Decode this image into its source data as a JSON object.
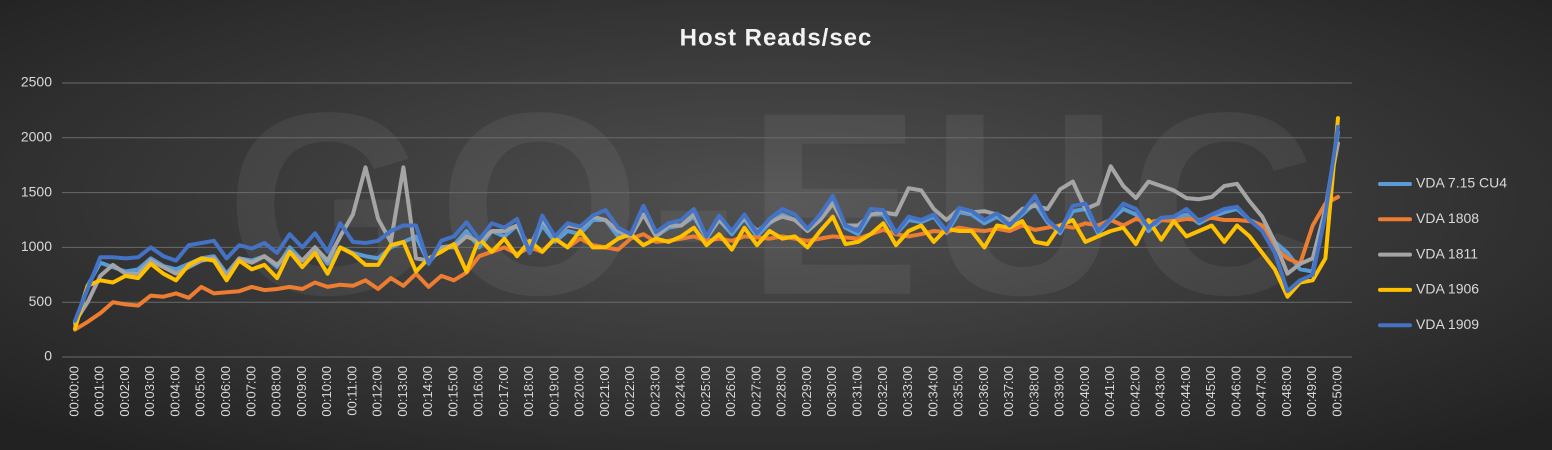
{
  "chart_data": {
    "type": "line",
    "title": "Host Reads/sec",
    "watermark": "GO-EUC",
    "ylim": [
      0,
      2500
    ],
    "yticks": [
      0,
      500,
      1000,
      1500,
      2000,
      2500
    ],
    "grid": true,
    "legend": "right",
    "categories": [
      "00:00:00",
      null,
      "00:01:00",
      null,
      "00:02:00",
      null,
      "00:03:00",
      null,
      "00:04:00",
      null,
      "00:05:00",
      null,
      "00:06:00",
      null,
      "00:07:00",
      null,
      "00:08:00",
      null,
      "00:09:00",
      null,
      "00:10:00",
      null,
      "00:11:00",
      null,
      "00:12:00",
      null,
      "00:13:00",
      null,
      "00:14:00",
      null,
      "00:15:00",
      null,
      "00:16:00",
      null,
      "00:17:00",
      null,
      "00:18:00",
      null,
      "00:19:00",
      null,
      "00:20:00",
      null,
      "00:21:00",
      null,
      "00:22:00",
      null,
      "00:23:00",
      null,
      "00:24:00",
      null,
      "00:25:00",
      null,
      "00:26:00",
      null,
      "00:27:00",
      null,
      "00:28:00",
      null,
      "00:29:00",
      null,
      "00:30:00",
      null,
      "00:31:00",
      null,
      "00:32:00",
      null,
      "00:33:00",
      null,
      "00:34:00",
      null,
      "00:35:00",
      null,
      "00:36:00",
      null,
      "00:37:00",
      null,
      "00:38:00",
      null,
      "00:39:00",
      null,
      "00:40:00",
      null,
      "00:41:00",
      null,
      "00:42:00",
      null,
      "00:43:00",
      null,
      "00:44:00",
      null,
      "00:45:00",
      null,
      "00:46:00",
      null,
      "00:47:00",
      null,
      "00:48:00",
      null,
      "00:49:00",
      null,
      "00:50:00"
    ],
    "series": [
      {
        "name": "VDA 7.15 CU4",
        "color": "#5b9bd5",
        "values": [
          300,
          650,
          860,
          820,
          780,
          800,
          900,
          830,
          800,
          850,
          900,
          920,
          760,
          900,
          880,
          920,
          820,
          1000,
          880,
          1000,
          850,
          1000,
          950,
          920,
          900,
          1000,
          1050,
          1100,
          860,
          1000,
          1020,
          1150,
          1000,
          1150,
          1100,
          1200,
          950,
          1200,
          1050,
          1150,
          1120,
          1250,
          1250,
          1100,
          1100,
          1300,
          1100,
          1180,
          1200,
          1280,
          1080,
          1250,
          1120,
          1260,
          1100,
          1220,
          1300,
          1250,
          1150,
          1250,
          1420,
          1180,
          1120,
          1300,
          1300,
          1120,
          1250,
          1230,
          1280,
          1130,
          1320,
          1300,
          1220,
          1280,
          1200,
          1300,
          1400,
          1230,
          1130,
          1330,
          1350,
          1130,
          1250,
          1350,
          1300,
          1150,
          1250,
          1260,
          1300,
          1220,
          1280,
          1320,
          1350,
          1250,
          1200,
          1050,
          950,
          800,
          780,
          1350,
          2050
        ]
      },
      {
        "name": "VDA 1808",
        "color": "#ed7d31",
        "values": [
          250,
          320,
          400,
          500,
          480,
          470,
          560,
          550,
          580,
          540,
          640,
          580,
          590,
          600,
          640,
          610,
          620,
          640,
          620,
          680,
          640,
          660,
          650,
          700,
          620,
          720,
          650,
          760,
          640,
          740,
          700,
          770,
          920,
          960,
          1000,
          940,
          1000,
          960,
          1080,
          1000,
          1080,
          1020,
          1000,
          980,
          1080,
          1120,
          1050,
          1060,
          1080,
          1100,
          1060,
          1080,
          1060,
          1100,
          1090,
          1080,
          1100,
          1080,
          1060,
          1080,
          1100,
          1090,
          1080,
          1120,
          1160,
          1120,
          1100,
          1120,
          1150,
          1140,
          1180,
          1160,
          1150,
          1170,
          1150,
          1200,
          1160,
          1180,
          1200,
          1180,
          1220,
          1200,
          1250,
          1200,
          1260,
          1230,
          1250,
          1240,
          1260,
          1250,
          1270,
          1250,
          1250,
          1240,
          1200,
          1000,
          900,
          850,
          1200,
          1400,
          1460
        ]
      },
      {
        "name": "VDA 1811",
        "color": "#a5a5a5",
        "values": [
          320,
          500,
          740,
          840,
          760,
          760,
          880,
          820,
          760,
          820,
          880,
          900,
          740,
          900,
          860,
          920,
          840,
          960,
          880,
          1000,
          880,
          1100,
          1300,
          1730,
          1260,
          1050,
          1730,
          900,
          880,
          1000,
          1000,
          1100,
          1050,
          1150,
          1150,
          1200,
          1000,
          1250,
          1100,
          1200,
          1180,
          1280,
          1250,
          1150,
          1100,
          1300,
          1100,
          1200,
          1200,
          1300,
          1100,
          1250,
          1150,
          1270,
          1150,
          1230,
          1280,
          1250,
          1150,
          1250,
          1400,
          1200,
          1200,
          1300,
          1320,
          1300,
          1540,
          1520,
          1350,
          1250,
          1350,
          1320,
          1330,
          1300,
          1250,
          1350,
          1380,
          1350,
          1530,
          1600,
          1350,
          1400,
          1740,
          1560,
          1450,
          1600,
          1560,
          1520,
          1450,
          1440,
          1460,
          1560,
          1580,
          1420,
          1280,
          1050,
          760,
          850,
          900,
          1350,
          1950
        ]
      },
      {
        "name": "VDA 1906",
        "color": "#ffc000",
        "values": [
          260,
          650,
          700,
          680,
          740,
          720,
          850,
          760,
          700,
          840,
          900,
          880,
          700,
          880,
          800,
          840,
          720,
          960,
          820,
          950,
          760,
          1000,
          940,
          840,
          840,
          1020,
          1050,
          780,
          900,
          960,
          1030,
          780,
          1080,
          960,
          1080,
          920,
          1060,
          960,
          1080,
          1000,
          1150,
          1000,
          1000,
          1080,
          1120,
          1020,
          1080,
          1050,
          1100,
          1180,
          1020,
          1120,
          980,
          1180,
          1020,
          1150,
          1080,
          1100,
          1000,
          1150,
          1280,
          1030,
          1050,
          1120,
          1220,
          1020,
          1150,
          1200,
          1050,
          1170,
          1150,
          1150,
          1000,
          1200,
          1180,
          1240,
          1050,
          1030,
          1200,
          1250,
          1050,
          1100,
          1150,
          1180,
          1030,
          1250,
          1070,
          1240,
          1100,
          1150,
          1200,
          1050,
          1200,
          1100,
          950,
          800,
          550,
          680,
          700,
          900,
          2180
        ]
      },
      {
        "name": "VDA 1909",
        "color": "#4472c4",
        "values": [
          330,
          620,
          910,
          910,
          900,
          910,
          1000,
          920,
          880,
          1020,
          1040,
          1060,
          900,
          1020,
          990,
          1040,
          950,
          1120,
          1000,
          1130,
          960,
          1220,
          1050,
          1040,
          1060,
          1150,
          1200,
          1200,
          850,
          1060,
          1100,
          1230,
          1070,
          1220,
          1180,
          1260,
          950,
          1290,
          1100,
          1220,
          1190,
          1290,
          1340,
          1180,
          1120,
          1380,
          1140,
          1220,
          1250,
          1350,
          1100,
          1290,
          1150,
          1300,
          1130,
          1260,
          1350,
          1300,
          1170,
          1300,
          1470,
          1200,
          1150,
          1350,
          1340,
          1130,
          1280,
          1250,
          1300,
          1150,
          1360,
          1330,
          1250,
          1310,
          1200,
          1320,
          1470,
          1250,
          1150,
          1380,
          1400,
          1150,
          1260,
          1400,
          1350,
          1180,
          1270,
          1280,
          1350,
          1240,
          1300,
          1350,
          1370,
          1250,
          1150,
          950,
          600,
          700,
          750,
          1300,
          2100
        ]
      }
    ]
  }
}
